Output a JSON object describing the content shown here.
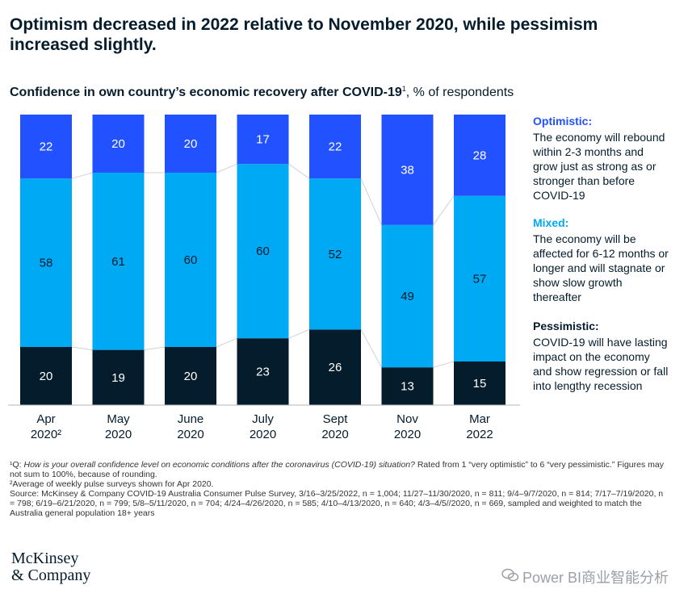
{
  "headline": "Optimism decreased in 2022 relative to November 2020, while pessimism increased slightly.",
  "subtitle": {
    "bold": "Confidence in own country’s economic recovery after COVID-19",
    "sup": "1",
    "rest": ", % of respondents"
  },
  "colors": {
    "optimistic": "#2251ff",
    "mixed": "#00a9f4",
    "pessimistic": "#051c2c",
    "connector": "#cfd3d6"
  },
  "chart_data": {
    "type": "bar",
    "stacked": true,
    "categories": [
      [
        "Apr",
        "2020²"
      ],
      [
        "May",
        "2020"
      ],
      [
        "June",
        "2020"
      ],
      [
        "July",
        "2020"
      ],
      [
        "Sept",
        "2020"
      ],
      [
        "Nov",
        "2020"
      ],
      [
        "Mar",
        "2022"
      ]
    ],
    "series": [
      {
        "name": "Pessimistic",
        "values": [
          20,
          19,
          20,
          23,
          26,
          13,
          15
        ]
      },
      {
        "name": "Mixed",
        "values": [
          58,
          61,
          60,
          60,
          52,
          49,
          57
        ]
      },
      {
        "name": "Optimistic",
        "values": [
          22,
          20,
          20,
          17,
          22,
          38,
          28
        ]
      }
    ],
    "ylim": [
      0,
      100
    ],
    "legend_position": "right"
  },
  "legend": [
    {
      "key": "optimistic",
      "title": "Optimistic:",
      "desc": "The economy will rebound within 2-3 months and grow just as strong as or stronger than before COVID-19"
    },
    {
      "key": "mixed",
      "title": "Mixed:",
      "desc": "The economy will be affected for 6-12 months or longer and will stagnate or show slow growth thereafter"
    },
    {
      "key": "pessimistic",
      "title": "Pessimistic:",
      "desc": "COVID-19 will have lasting impact on the economy and show regression or fall into lengthy recession"
    }
  ],
  "notes": {
    "n1_prefix": "¹Q: ",
    "n1_question": "How is your overall confidence level on economic conditions after the coronavirus (COVID-19) situation?",
    "n1_rest": " Rated from 1 “very optimistic” to 6 “very pessimistic.” Figures may not sum to 100%, because of rounding.",
    "n2": "²Average of weekly pulse surveys shown for Apr 2020.",
    "source": "Source: McKinsey & Company COVID-19 Australia Consumer Pulse Survey, 3/16–3/25/2022, n = 1,004; 11/27–11/30/2020, n = 811; 9/4–9/7/2020, n = 814; 7/17–7/19/2020, n = 798; 6/19–6/21/2020, n = 799; 5/8–5/11/2020, n = 704; 4/24–4/26/2020, n = 585; 4/10–4/13/2020, n = 640; 4/3–4/5//2020, n = 669, sampled and weighted to match the Australia general population 18+ years"
  },
  "logo": {
    "line1": "McKinsey",
    "line2": "& Company"
  },
  "watermark": {
    "icon": "wechat-icon",
    "text": "Power BI商业智能分析"
  }
}
